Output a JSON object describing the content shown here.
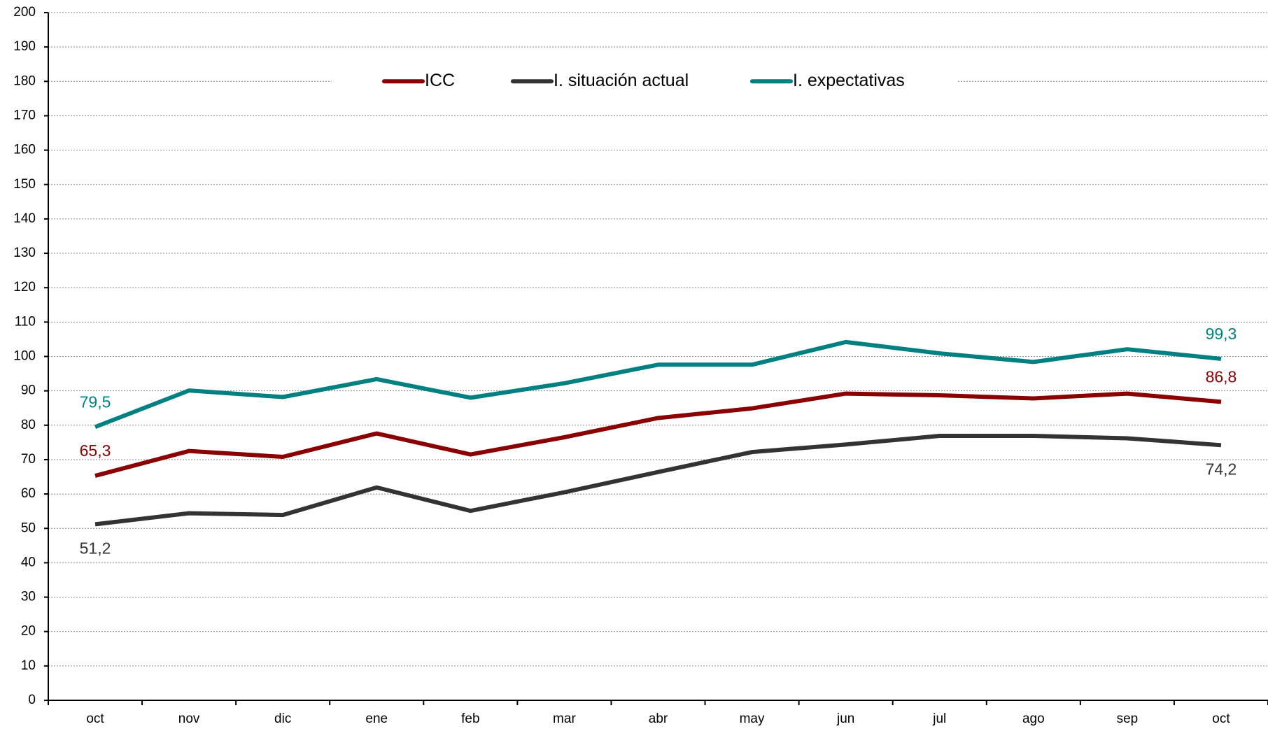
{
  "chart_data": {
    "type": "line",
    "categories": [
      "oct",
      "nov",
      "dic",
      "ene",
      "feb",
      "mar",
      "abr",
      "may",
      "jun",
      "jul",
      "ago",
      "sep",
      "oct"
    ],
    "series": [
      {
        "name": "ICC",
        "color": "#8b0000",
        "values": [
          65.3,
          72.5,
          70.8,
          77.6,
          71.5,
          76.5,
          82.1,
          84.9,
          89.2,
          88.7,
          87.8,
          89.2,
          86.8
        ],
        "value_labels": [
          "65,3",
          null,
          null,
          null,
          null,
          null,
          null,
          null,
          null,
          null,
          null,
          null,
          "86,8"
        ]
      },
      {
        "name": "I. situación actual",
        "color": "#333333",
        "values": [
          51.2,
          54.4,
          53.9,
          61.9,
          55.1,
          60.5,
          66.4,
          72.2,
          74.4,
          76.9,
          76.9,
          76.2,
          74.2
        ],
        "value_labels": [
          "51,2",
          null,
          null,
          null,
          null,
          null,
          null,
          null,
          null,
          null,
          null,
          null,
          "74,2"
        ]
      },
      {
        "name": "I. expectativas",
        "color": "#008080",
        "values": [
          79.5,
          90.1,
          88.2,
          93.4,
          88.0,
          92.2,
          97.6,
          97.6,
          104.2,
          100.9,
          98.4,
          102.1,
          99.3
        ],
        "value_labels": [
          "79,5",
          null,
          null,
          null,
          null,
          null,
          null,
          null,
          null,
          null,
          null,
          null,
          "99,3"
        ]
      }
    ],
    "ylim": [
      0,
      200
    ],
    "yticks": [
      0,
      10,
      20,
      30,
      40,
      50,
      60,
      70,
      80,
      90,
      100,
      110,
      120,
      130,
      140,
      150,
      160,
      170,
      180,
      190,
      200
    ],
    "grid": true,
    "legend": "top"
  }
}
